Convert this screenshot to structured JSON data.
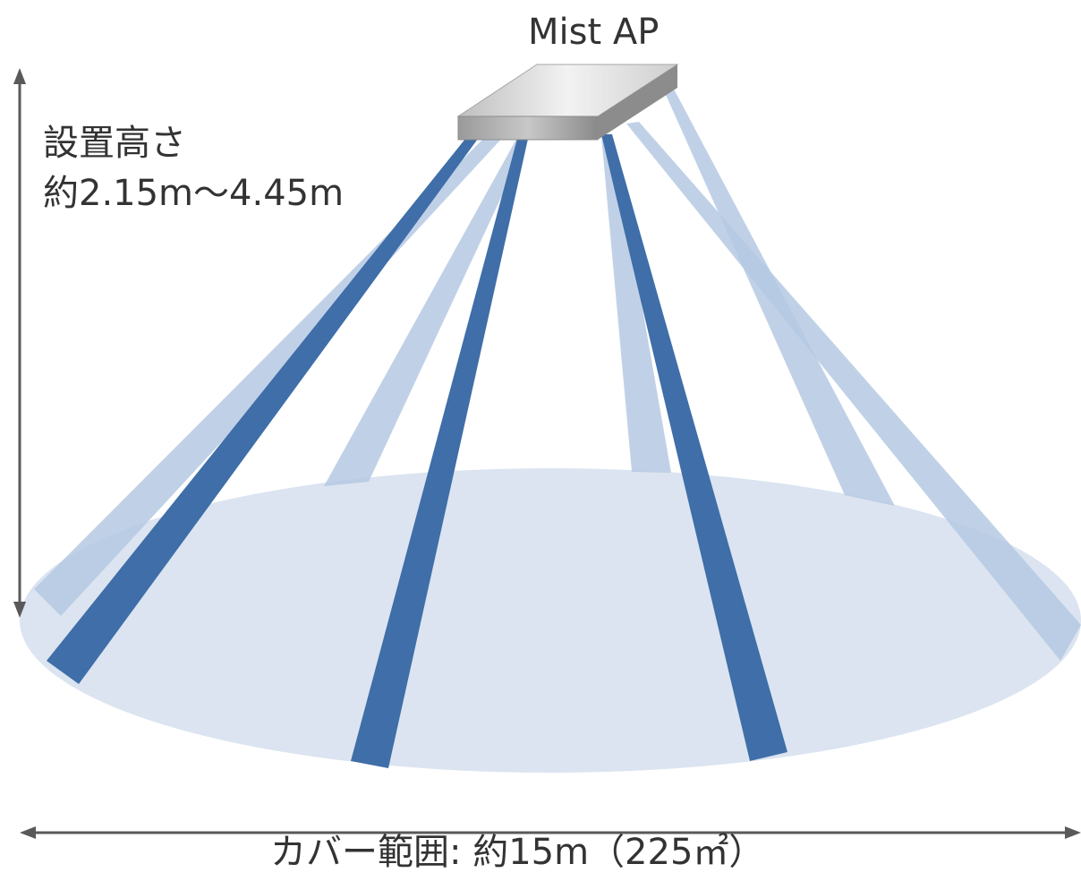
{
  "ap_label": "Mist AP",
  "height": {
    "title": "設置高さ",
    "value": "約2.15m〜4.45m"
  },
  "coverage": {
    "label": "カバー範囲: 約15m（225㎡）"
  },
  "colors": {
    "beam_dark": "#3f6ea8",
    "beam_light": "#b5c9e3",
    "floor": "#dbe4f0",
    "device_top": "#d9d9d9",
    "device_front": "#8c8c8c",
    "arrow": "#595959",
    "text": "#333333"
  }
}
